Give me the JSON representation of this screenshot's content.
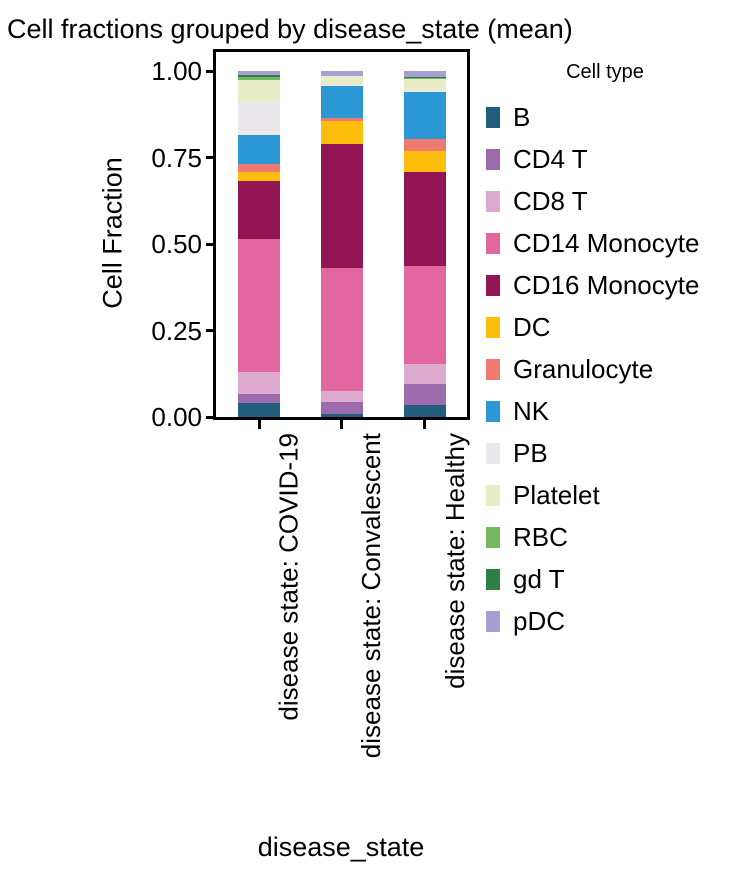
{
  "title": "Cell fractions grouped by disease_state (mean)",
  "chart_data": {
    "type": "bar",
    "stacked": true,
    "orientation": "vertical",
    "title": "Cell fractions grouped by disease_state (mean)",
    "xlabel": "disease_state",
    "ylabel": "Cell Fraction",
    "legend_title": "Cell type",
    "legend_position": "right",
    "grid": false,
    "ylim": [
      0,
      1.06
    ],
    "yticks": [
      {
        "value": 0.0,
        "label": "0.00"
      },
      {
        "value": 0.25,
        "label": "0.25"
      },
      {
        "value": 0.5,
        "label": "0.50"
      },
      {
        "value": 0.75,
        "label": "0.75"
      },
      {
        "value": 1.0,
        "label": "1.00"
      }
    ],
    "categories": [
      "disease state: COVID-19",
      "disease state: Convalescent",
      "disease state: Healthy"
    ],
    "series": [
      {
        "name": "B",
        "color": "#215d7c",
        "values": [
          0.04,
          0.008,
          0.034
        ]
      },
      {
        "name": "CD4 T",
        "color": "#9c6bab",
        "values": [
          0.027,
          0.034,
          0.061
        ]
      },
      {
        "name": "CD8 T",
        "color": "#dcaace",
        "values": [
          0.062,
          0.034,
          0.059
        ]
      },
      {
        "name": "CD14 Monocyte",
        "color": "#e2679f",
        "values": [
          0.387,
          0.356,
          0.283
        ]
      },
      {
        "name": "CD16 Monocyte",
        "color": "#941556",
        "values": [
          0.165,
          0.356,
          0.27
        ]
      },
      {
        "name": "DC",
        "color": "#fcbd0d",
        "values": [
          0.027,
          0.067,
          0.063
        ]
      },
      {
        "name": "Granulocyte",
        "color": "#ef7a70",
        "values": [
          0.023,
          0.01,
          0.033
        ]
      },
      {
        "name": "NK",
        "color": "#2b97d5",
        "values": [
          0.084,
          0.092,
          0.138
        ]
      },
      {
        "name": "PB",
        "color": "#eae8ec",
        "values": [
          0.095,
          0.002,
          0.002
        ]
      },
      {
        "name": "Platelet",
        "color": "#e6edc8",
        "values": [
          0.063,
          0.027,
          0.035
        ]
      },
      {
        "name": "RBC",
        "color": "#74b961",
        "values": [
          0.01,
          0.0,
          0.002
        ]
      },
      {
        "name": "gd T",
        "color": "#2f7e46",
        "values": [
          0.005,
          0.0,
          0.004
        ]
      },
      {
        "name": "pDC",
        "color": "#a69fd3",
        "values": [
          0.012,
          0.014,
          0.016
        ]
      }
    ]
  },
  "colors": {
    "axis": "#000000",
    "text": "#000000",
    "background": "#ffffff"
  }
}
